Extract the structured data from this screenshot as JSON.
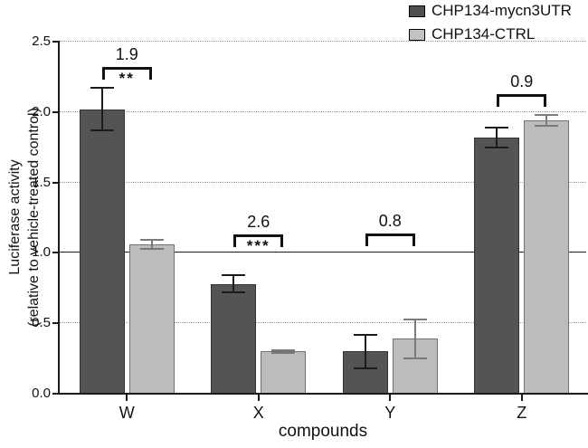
{
  "chart_data": {
    "type": "bar",
    "title": "",
    "xlabel": "compounds",
    "ylabel_lines": [
      "Luciferase activity",
      "(relative to vehicle-treated control)"
    ],
    "categories": [
      "W",
      "X",
      "Y",
      "Z"
    ],
    "series": [
      {
        "name": "CHP134-mycn3UTR",
        "color": "#545454",
        "border_color": "#333333",
        "swatch_color": "#4f4f4f",
        "error_color": "#1c1c1c",
        "values": [
          2.02,
          0.78,
          0.3,
          1.82
        ],
        "errors": [
          0.15,
          0.06,
          0.12,
          0.07
        ]
      },
      {
        "name": "CHP134-CTRL",
        "color": "#bcbcbc",
        "border_color": "#707070",
        "swatch_color": "#c2c2c2",
        "error_color": "#7a7a7a",
        "values": [
          1.06,
          0.3,
          0.39,
          1.94
        ],
        "errors": [
          0.03,
          0.01,
          0.14,
          0.04
        ]
      }
    ],
    "brackets": [
      {
        "category": "W",
        "label": "1.9",
        "stars": "**",
        "y": 2.32
      },
      {
        "category": "X",
        "label": "2.6",
        "stars": "***",
        "y": 1.13
      },
      {
        "category": "Y",
        "label": "0.8",
        "stars": "",
        "y": 1.14
      },
      {
        "category": "Z",
        "label": "0.9",
        "stars": "",
        "y": 2.13
      }
    ],
    "ylim": [
      0,
      2.5
    ],
    "y_ticks": [
      "0.0",
      "0.5",
      "1.0",
      "1.5",
      "2.0",
      "2.5"
    ],
    "gridlines": {
      "dotted_at": [
        0.5,
        1.5,
        2.0,
        2.5
      ],
      "solid_at": [
        1.0
      ]
    },
    "legend_position": "top-right",
    "grid": "horizontal-dotted",
    "colors": {
      "axis": "#1a1a1a",
      "grid_dotted": "#9a9a9a",
      "background": "#ffffff"
    }
  }
}
